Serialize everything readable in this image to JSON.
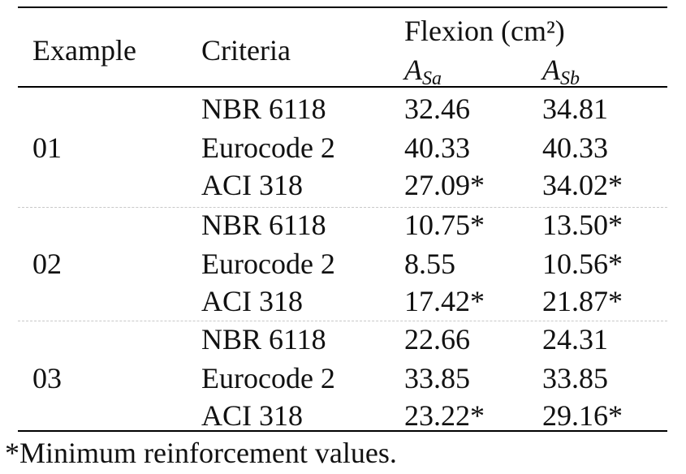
{
  "header": {
    "example": "Example",
    "criteria": "Criteria",
    "flexion": "Flexion (cm²)",
    "asa_main": "A",
    "asa_sub": "Sa",
    "asb_main": "A",
    "asb_sub": "Sb"
  },
  "groups": [
    {
      "example": "01",
      "rows": [
        {
          "criteria": "NBR 6118",
          "asa": "32.46",
          "asb": "34.81"
        },
        {
          "criteria": "Eurocode 2",
          "asa": "40.33",
          "asb": "40.33"
        },
        {
          "criteria": "ACI 318",
          "asa": "27.09*",
          "asb": "34.02*"
        }
      ]
    },
    {
      "example": "02",
      "rows": [
        {
          "criteria": "NBR 6118",
          "asa": "10.75*",
          "asb": "13.50*"
        },
        {
          "criteria": "Eurocode 2",
          "asa": "8.55",
          "asb": "10.56*"
        },
        {
          "criteria": "ACI 318",
          "asa": "17.42*",
          "asb": "21.87*"
        }
      ]
    },
    {
      "example": "03",
      "rows": [
        {
          "criteria": "NBR 6118",
          "asa": "22.66",
          "asb": "24.31"
        },
        {
          "criteria": "Eurocode 2",
          "asa": "33.85",
          "asb": "33.85"
        },
        {
          "criteria": "ACI 318",
          "asa": "23.22*",
          "asb": "29.16*"
        }
      ]
    }
  ],
  "footnote": "*Minimum reinforcement values."
}
